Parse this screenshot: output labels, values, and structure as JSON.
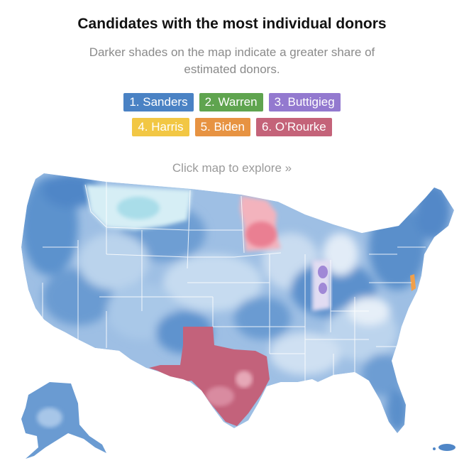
{
  "header": {
    "title": "Candidates with the most individual donors",
    "subtitle": "Darker shades on the map indicate a greater share of estimated donors."
  },
  "legend": {
    "items": [
      {
        "label": "1. Sanders",
        "color": "#4a82c4"
      },
      {
        "label": "2. Warren",
        "color": "#5fa44f"
      },
      {
        "label": "3. Buttigieg",
        "color": "#9379cf"
      },
      {
        "label": "4. Harris",
        "color": "#f2c744"
      },
      {
        "label": "5. Biden",
        "color": "#e79342"
      },
      {
        "label": "6. O’Rourke",
        "color": "#c46379"
      }
    ]
  },
  "hint": "Click map to explore »",
  "map": {
    "colors": {
      "sanders_dark": "#4f8ac9",
      "sanders_mid": "#7faad9",
      "sanders_light": "#b9d2ec",
      "sanders_pale": "#dde9f5",
      "warren_light": "#d3edf3",
      "orourke": "#c8667f",
      "orourke_pink": "#f09aa8",
      "buttigieg": "#a48ad6",
      "buttigieg_pale": "#ddd8f0",
      "biden": "#f0a04b"
    }
  }
}
